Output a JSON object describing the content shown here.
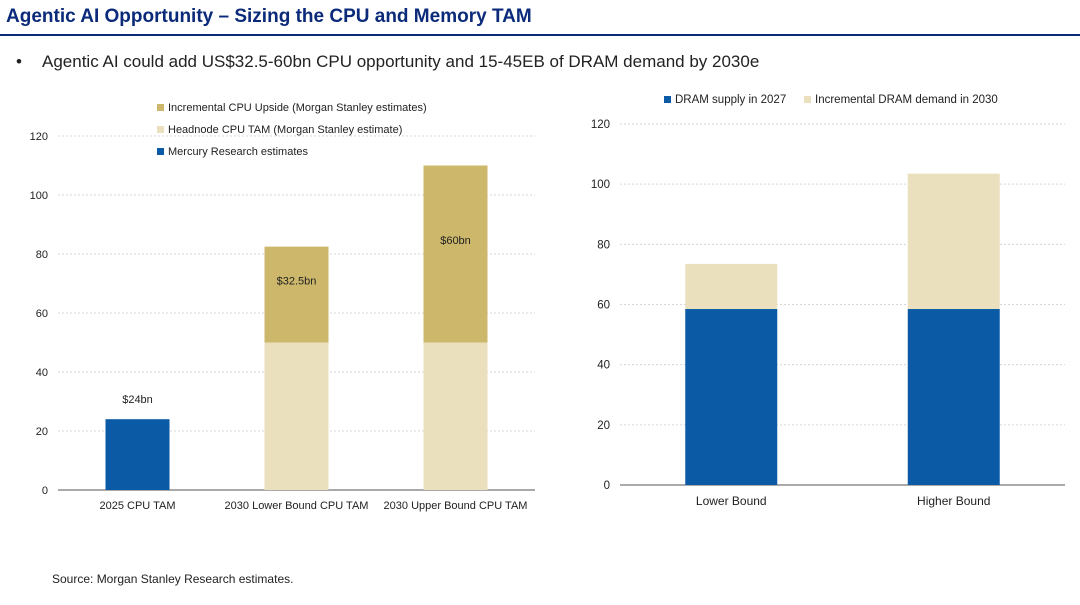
{
  "page": {
    "title": "Agentic AI Opportunity – Sizing the CPU and Memory TAM",
    "bullet_symbol": "•",
    "bullet": "Agentic AI could add US$32.5-60bn CPU opportunity and 15-45EB of DRAM demand by 2030e",
    "source": "Source: Morgan Stanley Research estimates."
  },
  "chart_data": [
    {
      "type": "bar",
      "stacked": true,
      "title": "",
      "xlabel": "",
      "ylabel": "",
      "categories": [
        "2025 CPU TAM",
        "2030 Lower Bound CPU TAM",
        "2030 Upper Bound CPU TAM"
      ],
      "ylim": [
        0,
        120
      ],
      "yticks": [
        0,
        20,
        40,
        60,
        80,
        100,
        120
      ],
      "legend_position": "top-center",
      "series": [
        {
          "name": "Mercury Research estimates",
          "color": "#0a5aa6",
          "values": [
            24,
            0,
            0
          ]
        },
        {
          "name": "Headnode CPU TAM (Morgan Stanley estimate)",
          "color": "#ebe0bd",
          "values": [
            0,
            50,
            50
          ]
        },
        {
          "name": "Incremental CPU Upside (Morgan Stanley estimates)",
          "color": "#cdb76b",
          "values": [
            0,
            32.5,
            60
          ]
        }
      ],
      "legend_order": [
        2,
        1,
        0
      ],
      "annotations": [
        {
          "category": 0,
          "text": "$24bn",
          "position": "above"
        },
        {
          "category": 1,
          "text": "$32.5bn",
          "position": "inside-top-segment"
        },
        {
          "category": 2,
          "text": "$60bn",
          "position": "inside-top-segment"
        }
      ]
    },
    {
      "type": "bar",
      "stacked": true,
      "title": "",
      "xlabel": "",
      "ylabel": "",
      "categories": [
        "Lower Bound",
        "Higher Bound"
      ],
      "ylim": [
        0,
        120
      ],
      "yticks": [
        0,
        20,
        40,
        60,
        80,
        100,
        120
      ],
      "legend_position": "top",
      "series": [
        {
          "name": "DRAM supply in 2027",
          "color": "#0a5aa6",
          "values": [
            58.5,
            58.5
          ]
        },
        {
          "name": "Incremental DRAM demand in 2030",
          "color": "#ebe0bd",
          "values": [
            15,
            45
          ]
        }
      ],
      "legend_order": [
        0,
        1
      ],
      "annotations": []
    }
  ]
}
